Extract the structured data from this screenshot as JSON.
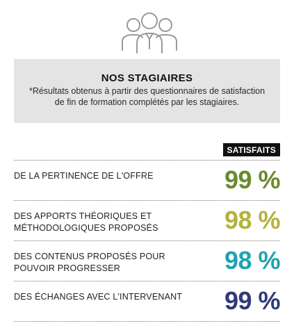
{
  "header": {
    "title": "NOS STAGIAIRES",
    "note": "*Résultats obtenus à partir des questionnaires de satisfaction de fin de formation complétés par les stagiaires."
  },
  "column_header": "SATISFAITS",
  "rows": [
    {
      "label": "DE LA PERTINENCE DE L'OFFRE",
      "value": "99 %",
      "color": "#6b8a2c"
    },
    {
      "label": "DES APPORTS THÉORIQUES ET MÉTHODOLOGIQUES PROPOSÉS",
      "value": "98 %",
      "color": "#b5b23a"
    },
    {
      "label": "DES CONTENUS PROPOSÉS POUR POUVOIR PROGRESSER",
      "value": "98 %",
      "color": "#1fa3b0"
    },
    {
      "label": "DES ÉCHANGES AVEC L'INTERVENANT",
      "value": "99 %",
      "color": "#2f3a7a"
    }
  ],
  "icon": "people-group-icon"
}
